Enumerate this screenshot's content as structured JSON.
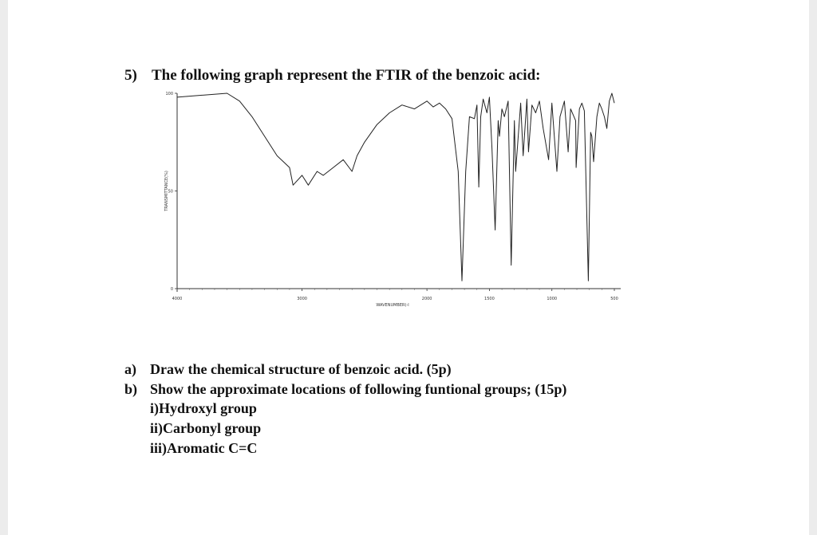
{
  "question": {
    "number": "5)",
    "text": "The following graph represent the FTIR of the benzoic acid:"
  },
  "chart_data": {
    "type": "line",
    "xlabel": "WAVENUMBER(-l",
    "ylabel": "TRANSMITTANCE(%)",
    "xlim": [
      4000,
      500
    ],
    "ylim": [
      0,
      100
    ],
    "x_ticks": [
      "4000",
      "3000",
      "2000",
      "1500",
      "1000",
      "500"
    ],
    "y_ticks": [
      "100",
      "50",
      "0"
    ],
    "series": [
      {
        "color": "#222222",
        "x": [
          4000,
          3800,
          3600,
          3500,
          3400,
          3300,
          3200,
          3100,
          3072,
          3000,
          2950,
          2880,
          2830,
          2750,
          2670,
          2600,
          2560,
          2500,
          2400,
          2300,
          2200,
          2100,
          2000,
          1950,
          1900,
          1850,
          1800,
          1750,
          1720,
          1690,
          1660,
          1620,
          1600,
          1585,
          1570,
          1550,
          1520,
          1500,
          1480,
          1454,
          1430,
          1420,
          1400,
          1380,
          1350,
          1326,
          1300,
          1290,
          1250,
          1230,
          1200,
          1187,
          1160,
          1130,
          1100,
          1070,
          1026,
          1000,
          960,
          935,
          900,
          870,
          850,
          810,
          806,
          780,
          760,
          740,
          708,
          690,
          680,
          666,
          640,
          620,
          600,
          580,
          560,
          540,
          520,
          500
        ],
        "y": [
          98,
          99,
          100,
          96,
          88,
          78,
          68,
          62,
          53,
          58,
          53,
          60,
          58,
          62,
          66,
          60,
          68,
          75,
          84,
          90,
          94,
          92,
          96,
          93,
          95,
          92,
          87,
          60,
          4,
          60,
          88,
          87,
          94,
          52,
          88,
          97,
          90,
          98,
          72,
          30,
          86,
          78,
          92,
          88,
          96,
          12,
          86,
          60,
          95,
          68,
          97,
          70,
          94,
          90,
          96,
          82,
          66,
          95,
          60,
          88,
          96,
          70,
          92,
          86,
          62,
          92,
          95,
          91,
          4,
          80,
          78,
          65,
          88,
          95,
          92,
          88,
          82,
          96,
          100,
          95
        ]
      }
    ]
  },
  "parts": [
    {
      "label": "a)",
      "text": "Draw the chemical structure of benzoic acid. (5p)"
    },
    {
      "label": "b)",
      "text": "Show the approximate locations of following funtional groups; (15p)"
    }
  ],
  "items": [
    "i)Hydroxyl group",
    "ii)Carbonyl group",
    "iii)Aromatic C=C"
  ]
}
